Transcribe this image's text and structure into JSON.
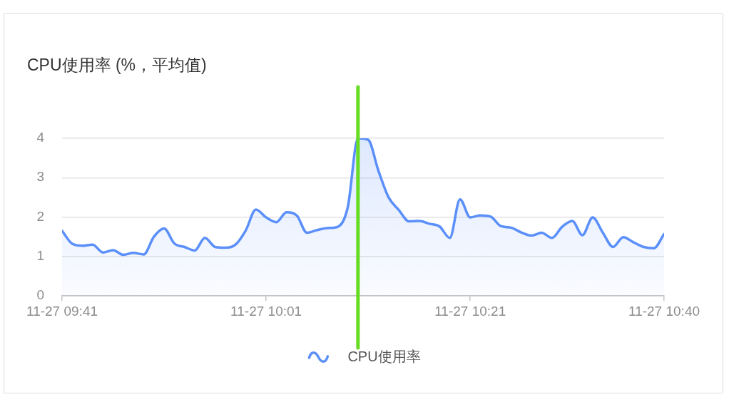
{
  "chart_data": {
    "type": "area",
    "title": "CPU使用率 (%，平均值)",
    "x": [
      "--11-27T09:41",
      "--11-27T09:42",
      "--11-27T09:43",
      "--11-27T09:44",
      "--11-27T09:45",
      "--11-27T09:46",
      "--11-27T09:47",
      "--11-27T09:48",
      "--11-27T09:49",
      "--11-27T09:50",
      "--11-27T09:51",
      "--11-27T09:52",
      "--11-27T09:53",
      "--11-27T09:54",
      "--11-27T09:55",
      "--11-27T09:56",
      "--11-27T09:57",
      "--11-27T09:58",
      "--11-27T09:59",
      "--11-27T10:00",
      "--11-27T10:01",
      "--11-27T10:02",
      "--11-27T10:03",
      "--11-27T10:04",
      "--11-27T10:05",
      "--11-27T10:06",
      "--11-27T10:07",
      "--11-27T10:08",
      "--11-27T10:09",
      "--11-27T10:10",
      "--11-27T10:11",
      "--11-27T10:12",
      "--11-27T10:13",
      "--11-27T10:14",
      "--11-27T10:15",
      "--11-27T10:16",
      "--11-27T10:17",
      "--11-27T10:18",
      "--11-27T10:19",
      "--11-27T10:20",
      "--11-27T10:21",
      "--11-27T10:22",
      "--11-27T10:23",
      "--11-27T10:24",
      "--11-27T10:25",
      "--11-27T10:26",
      "--11-27T10:27",
      "--11-27T10:28",
      "--11-27T10:29",
      "--11-27T10:30",
      "--11-27T10:31",
      "--11-27T10:32",
      "--11-27T10:33",
      "--11-27T10:34",
      "--11-27T10:35",
      "--11-27T10:36",
      "--11-27T10:37",
      "--11-27T10:38",
      "--11-27T10:39",
      "--11-27T10:40"
    ],
    "series": [
      {
        "name": "CPU使用率",
        "color": "#5b8ff9",
        "values": [
          1.65,
          1.32,
          1.27,
          1.3,
          1.1,
          1.16,
          1.04,
          1.09,
          1.05,
          1.5,
          1.71,
          1.33,
          1.24,
          1.15,
          1.47,
          1.24,
          1.22,
          1.3,
          1.66,
          2.19,
          1.99,
          1.87,
          2.12,
          2.04,
          1.6,
          1.67,
          1.72,
          1.75,
          2.25,
          4.0,
          3.96,
          3.18,
          2.5,
          2.18,
          1.89,
          1.9,
          1.83,
          1.76,
          1.47,
          2.45,
          1.99,
          2.04,
          2.01,
          1.77,
          1.73,
          1.61,
          1.53,
          1.6,
          1.47,
          1.75,
          1.9,
          1.54,
          1.99,
          1.6,
          1.24,
          1.49,
          1.36,
          1.24,
          1.21,
          1.57
        ]
      }
    ],
    "xlim": [
      "--11-27T09:41",
      "--11-27T10:40"
    ],
    "xticks": [
      {
        "value": "--11-27T09:41",
        "label": "11-27 09:41"
      },
      {
        "value": "--11-27T10:01",
        "label": "11-27 10:01"
      },
      {
        "value": "--11-27T10:21",
        "label": "11-27 10:21"
      },
      {
        "value": "--11-27T10:40",
        "label": "11-27 10:40"
      }
    ],
    "ylim": [
      0,
      4
    ],
    "yticks": [
      0,
      1,
      2,
      3,
      4
    ],
    "grid": "y",
    "legend": "bottom",
    "line_style": "solid",
    "ref_lines": [
      {
        "axis": "x",
        "value": "--11-27T10:10",
        "color": "#66dd22"
      }
    ]
  }
}
